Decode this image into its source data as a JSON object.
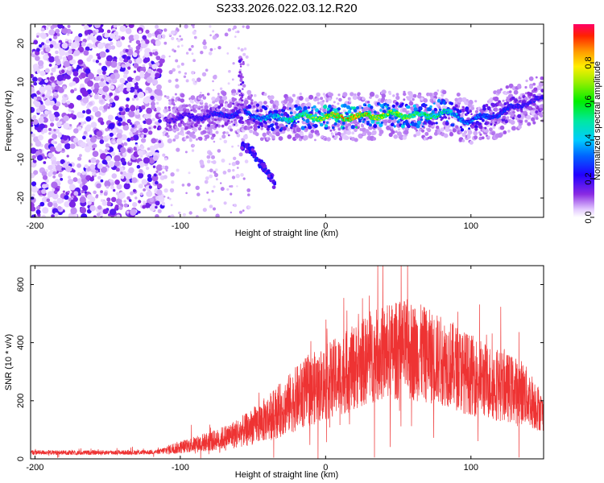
{
  "chart_data": [
    {
      "type": "heatmap",
      "title": "S233.2026.022.03.12.R20",
      "xlabel": "Height of straight line (km)",
      "ylabel": "Frequency (Hz)",
      "xlim": [
        -203,
        150
      ],
      "ylim": [
        -25,
        25
      ],
      "xticks": [
        -200,
        -100,
        0,
        100
      ],
      "yticks": [
        -20,
        -10,
        0,
        10,
        20
      ],
      "colorbar": {
        "label": "Normalized spectral amplitude",
        "range": [
          0.0,
          1.0
        ],
        "ticks": [
          0.0,
          0.2,
          0.4,
          0.6,
          0.8
        ]
      },
      "noise_region_x": [
        -203,
        -112
      ],
      "signal_track": {
        "x": [
          -110,
          -100,
          -90,
          -80,
          -70,
          -60,
          -50,
          -40,
          -30,
          -20,
          -10,
          0,
          10,
          20,
          30,
          40,
          50,
          60,
          70,
          80,
          90,
          100,
          110,
          120,
          130,
          140,
          150
        ],
        "freq": [
          0.5,
          0.8,
          1.0,
          1.2,
          1.5,
          2.0,
          1.5,
          0.8,
          0.5,
          1.0,
          1.0,
          1.0,
          1.0,
          1.0,
          1.2,
          1.5,
          1.5,
          1.5,
          1.0,
          2.5,
          1.0,
          0.0,
          1.0,
          2.0,
          3.5,
          5.0,
          5.5
        ],
        "amp": [
          0.2,
          0.22,
          0.24,
          0.26,
          0.28,
          0.3,
          0.38,
          0.45,
          0.52,
          0.6,
          0.72,
          0.85,
          0.92,
          0.95,
          0.9,
          0.8,
          0.72,
          0.7,
          0.65,
          0.58,
          0.45,
          0.38,
          0.35,
          0.3,
          0.28,
          0.26,
          0.25
        ]
      },
      "branch": {
        "x": [
          -58,
          -50,
          -45,
          -40,
          -37,
          -35
        ],
        "freq": [
          -6,
          -8,
          -11,
          -13,
          -15,
          -17
        ]
      }
    },
    {
      "type": "line",
      "xlabel": "Height of straight line (km)",
      "ylabel": "SNR (10 * v/v)",
      "xlim": [
        -203,
        150
      ],
      "ylim": [
        0,
        665
      ],
      "xticks": [
        -200,
        -100,
        0,
        100
      ],
      "yticks": [
        0,
        200,
        400,
        600
      ],
      "series": [
        {
          "name": "SNR",
          "color": "#ee3333",
          "x": [
            -203,
            -190,
            -170,
            -150,
            -130,
            -115,
            -105,
            -95,
            -85,
            -75,
            -65,
            -55,
            -45,
            -35,
            -25,
            -15,
            -5,
            5,
            15,
            25,
            35,
            45,
            55,
            65,
            75,
            85,
            95,
            105,
            115,
            125,
            135,
            145,
            150
          ],
          "mean": [
            22,
            22,
            21,
            22,
            22,
            24,
            35,
            45,
            55,
            65,
            80,
            100,
            125,
            155,
            190,
            225,
            250,
            275,
            300,
            330,
            355,
            370,
            375,
            365,
            345,
            330,
            300,
            280,
            260,
            245,
            230,
            185,
            150
          ],
          "amp": [
            10,
            10,
            10,
            10,
            10,
            10,
            25,
            30,
            40,
            45,
            60,
            70,
            90,
            110,
            130,
            150,
            160,
            170,
            180,
            190,
            200,
            210,
            220,
            210,
            200,
            190,
            180,
            170,
            160,
            150,
            140,
            110,
            70
          ]
        }
      ]
    }
  ],
  "colors": {
    "signal_line": "#ee3333",
    "axis": "#000000",
    "background": "#ffffff"
  }
}
